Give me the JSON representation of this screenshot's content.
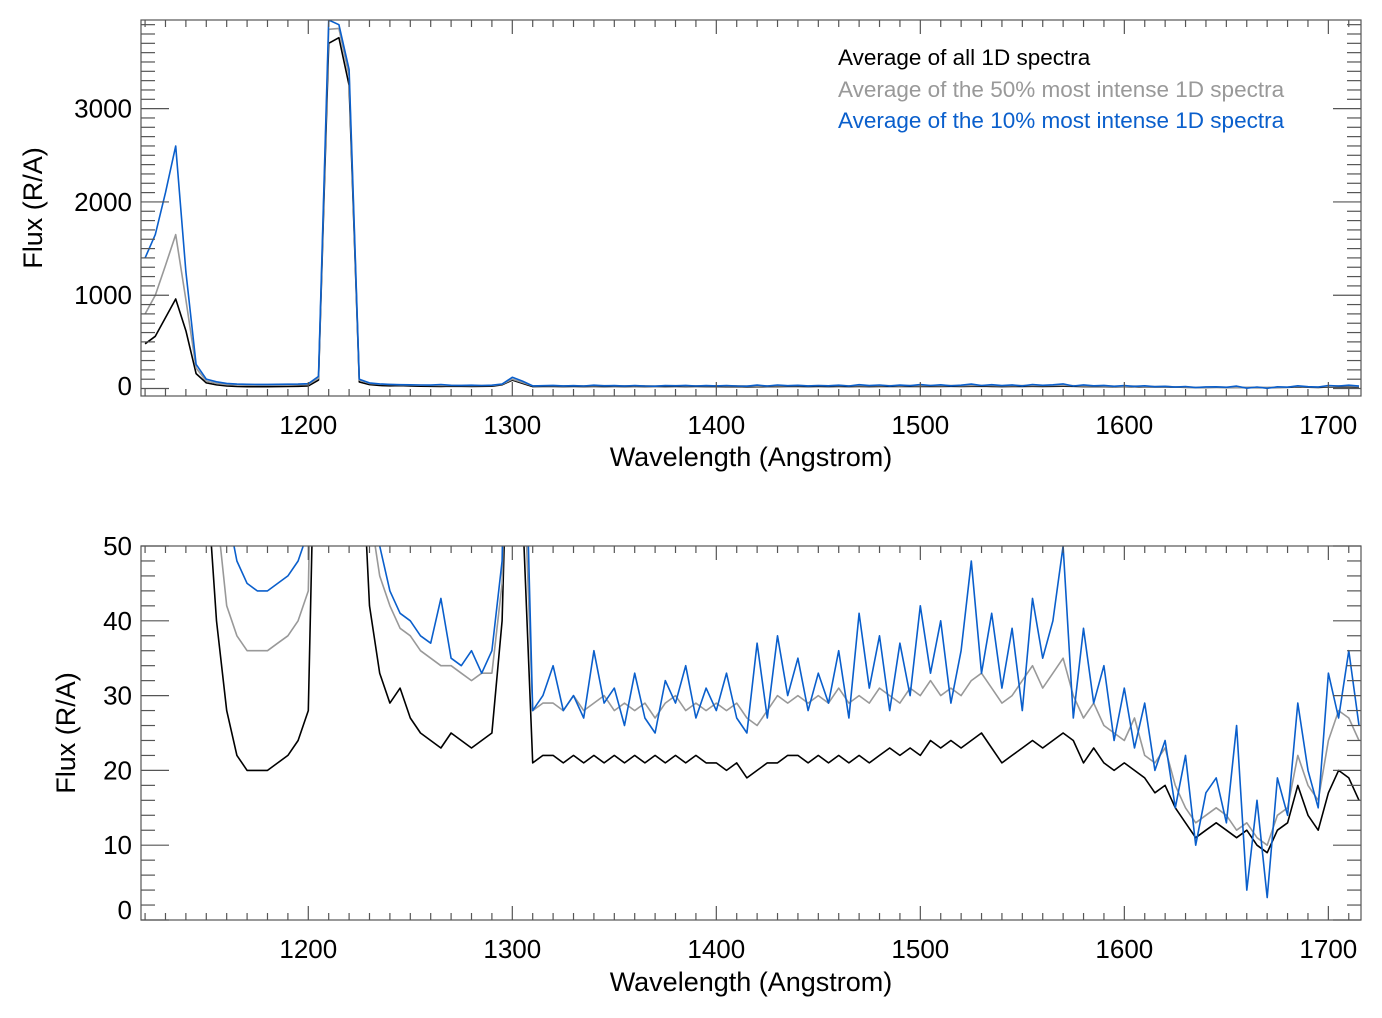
{
  "chart_data": {
    "type": "line",
    "legend": {
      "placement": "top-right",
      "entries": [
        {
          "label": "Average of all 1D spectra",
          "color": "#000000"
        },
        {
          "label": "Average of the 50% most intense 1D spectra",
          "color": "#999999"
        },
        {
          "label": "Average of the 10% most intense 1D spectra",
          "color": "#0a5fcc"
        }
      ]
    },
    "x": [
      1120,
      1125,
      1130,
      1135,
      1140,
      1145,
      1150,
      1155,
      1160,
      1165,
      1170,
      1175,
      1180,
      1185,
      1190,
      1195,
      1200,
      1205,
      1210,
      1215,
      1220,
      1225,
      1230,
      1235,
      1240,
      1245,
      1250,
      1255,
      1260,
      1265,
      1270,
      1275,
      1280,
      1285,
      1290,
      1295,
      1300,
      1305,
      1310,
      1315,
      1320,
      1325,
      1330,
      1335,
      1340,
      1345,
      1350,
      1355,
      1360,
      1365,
      1370,
      1375,
      1380,
      1385,
      1390,
      1395,
      1400,
      1405,
      1410,
      1415,
      1420,
      1425,
      1430,
      1435,
      1440,
      1445,
      1450,
      1455,
      1460,
      1465,
      1470,
      1475,
      1480,
      1485,
      1490,
      1495,
      1500,
      1505,
      1510,
      1515,
      1520,
      1525,
      1530,
      1535,
      1540,
      1545,
      1550,
      1555,
      1560,
      1565,
      1570,
      1575,
      1580,
      1585,
      1590,
      1595,
      1600,
      1605,
      1610,
      1615,
      1620,
      1625,
      1630,
      1635,
      1640,
      1645,
      1650,
      1655,
      1660,
      1665,
      1670,
      1675,
      1680,
      1685,
      1690,
      1695,
      1700,
      1705,
      1710,
      1715
    ],
    "series": [
      {
        "name": "Average of all 1D spectra",
        "color": "#000000",
        "values": [
          480,
          560,
          760,
          960,
          620,
          160,
          60,
          40,
          28,
          22,
          20,
          20,
          20,
          21,
          22,
          24,
          28,
          90,
          3700,
          3760,
          3250,
          70,
          42,
          33,
          29,
          31,
          27,
          25,
          24,
          23,
          25,
          24,
          23,
          24,
          25,
          40,
          90,
          55,
          21,
          22,
          22,
          21,
          22,
          21,
          22,
          21,
          22,
          21,
          22,
          21,
          22,
          21,
          22,
          21,
          22,
          21,
          21,
          20,
          21,
          19,
          20,
          21,
          21,
          22,
          22,
          21,
          22,
          21,
          22,
          21,
          22,
          21,
          22,
          23,
          22,
          23,
          22,
          24,
          23,
          24,
          23,
          24,
          25,
          23,
          21,
          22,
          23,
          24,
          23,
          24,
          25,
          24,
          21,
          23,
          21,
          20,
          21,
          20,
          19,
          17,
          18,
          15,
          13,
          11,
          12,
          13,
          12,
          11,
          12,
          10,
          9,
          12,
          13,
          18,
          14,
          12,
          17,
          20,
          19,
          16
        ]
      },
      {
        "name": "Average of the 50% most intense 1D spectra",
        "color": "#999999",
        "values": [
          800,
          1000,
          1320,
          1650,
          950,
          220,
          80,
          55,
          42,
          38,
          36,
          36,
          36,
          37,
          38,
          40,
          44,
          110,
          3850,
          3860,
          3350,
          90,
          55,
          46,
          42,
          39,
          38,
          36,
          35,
          34,
          34,
          33,
          32,
          33,
          33,
          45,
          100,
          65,
          28,
          29,
          29,
          28,
          30,
          28,
          29,
          30,
          28,
          29,
          28,
          29,
          27,
          29,
          30,
          28,
          29,
          28,
          29,
          28,
          29,
          27,
          26,
          28,
          30,
          29,
          30,
          29,
          30,
          29,
          31,
          29,
          30,
          29,
          31,
          30,
          29,
          31,
          30,
          32,
          30,
          31,
          30,
          32,
          33,
          31,
          29,
          30,
          32,
          34,
          31,
          33,
          35,
          30,
          27,
          29,
          26,
          25,
          24,
          27,
          22,
          21,
          23,
          18,
          15,
          13,
          14,
          15,
          14,
          12,
          13,
          11,
          10,
          14,
          15,
          22,
          18,
          16,
          24,
          28,
          27,
          24
        ]
      },
      {
        "name": "Average of the 10% most intense 1D spectra",
        "color": "#0a5fcc",
        "values": [
          1400,
          1650,
          2100,
          2600,
          1250,
          260,
          100,
          72,
          55,
          48,
          45,
          44,
          44,
          45,
          46,
          48,
          52,
          130,
          3950,
          3900,
          3420,
          100,
          60,
          50,
          44,
          41,
          40,
          38,
          37,
          43,
          35,
          34,
          36,
          33,
          36,
          48,
          120,
          80,
          28,
          30,
          34,
          28,
          30,
          27,
          36,
          29,
          31,
          26,
          33,
          27,
          25,
          32,
          29,
          34,
          27,
          31,
          28,
          33,
          27,
          25,
          37,
          27,
          38,
          30,
          35,
          28,
          33,
          29,
          36,
          27,
          41,
          31,
          38,
          28,
          37,
          30,
          42,
          33,
          40,
          29,
          36,
          48,
          33,
          41,
          31,
          39,
          28,
          43,
          35,
          40,
          50,
          27,
          39,
          29,
          34,
          24,
          31,
          23,
          29,
          20,
          24,
          15,
          22,
          10,
          17,
          19,
          13,
          26,
          4,
          16,
          3,
          19,
          14,
          29,
          20,
          15,
          33,
          27,
          36,
          26
        ]
      }
    ],
    "panels": [
      {
        "name": "full-range",
        "xlabel": "Wavelength (Angstrom)",
        "ylabel": "Flux (R/A)",
        "xlim": [
          1118,
          1716
        ],
        "ylim": [
          -80,
          3950
        ],
        "xticks": [
          "1200",
          "1300",
          "1400",
          "1500",
          "1600",
          "1700"
        ],
        "yticks": [
          "0",
          "1000",
          "2000",
          "3000"
        ],
        "xminor": 10,
        "yminor": 100,
        "show_legend": true
      },
      {
        "name": "zoomed",
        "xlabel": "Wavelength (Angstrom)",
        "ylabel": "Flux (R/A)",
        "xlim": [
          1118,
          1716
        ],
        "ylim": [
          0,
          50
        ],
        "xticks": [
          "1200",
          "1300",
          "1400",
          "1500",
          "1600",
          "1700"
        ],
        "yticks": [
          "0",
          "10",
          "20",
          "30",
          "40",
          "50"
        ],
        "xminor": 10,
        "yminor": 2,
        "show_legend": false
      }
    ],
    "grid": false
  }
}
